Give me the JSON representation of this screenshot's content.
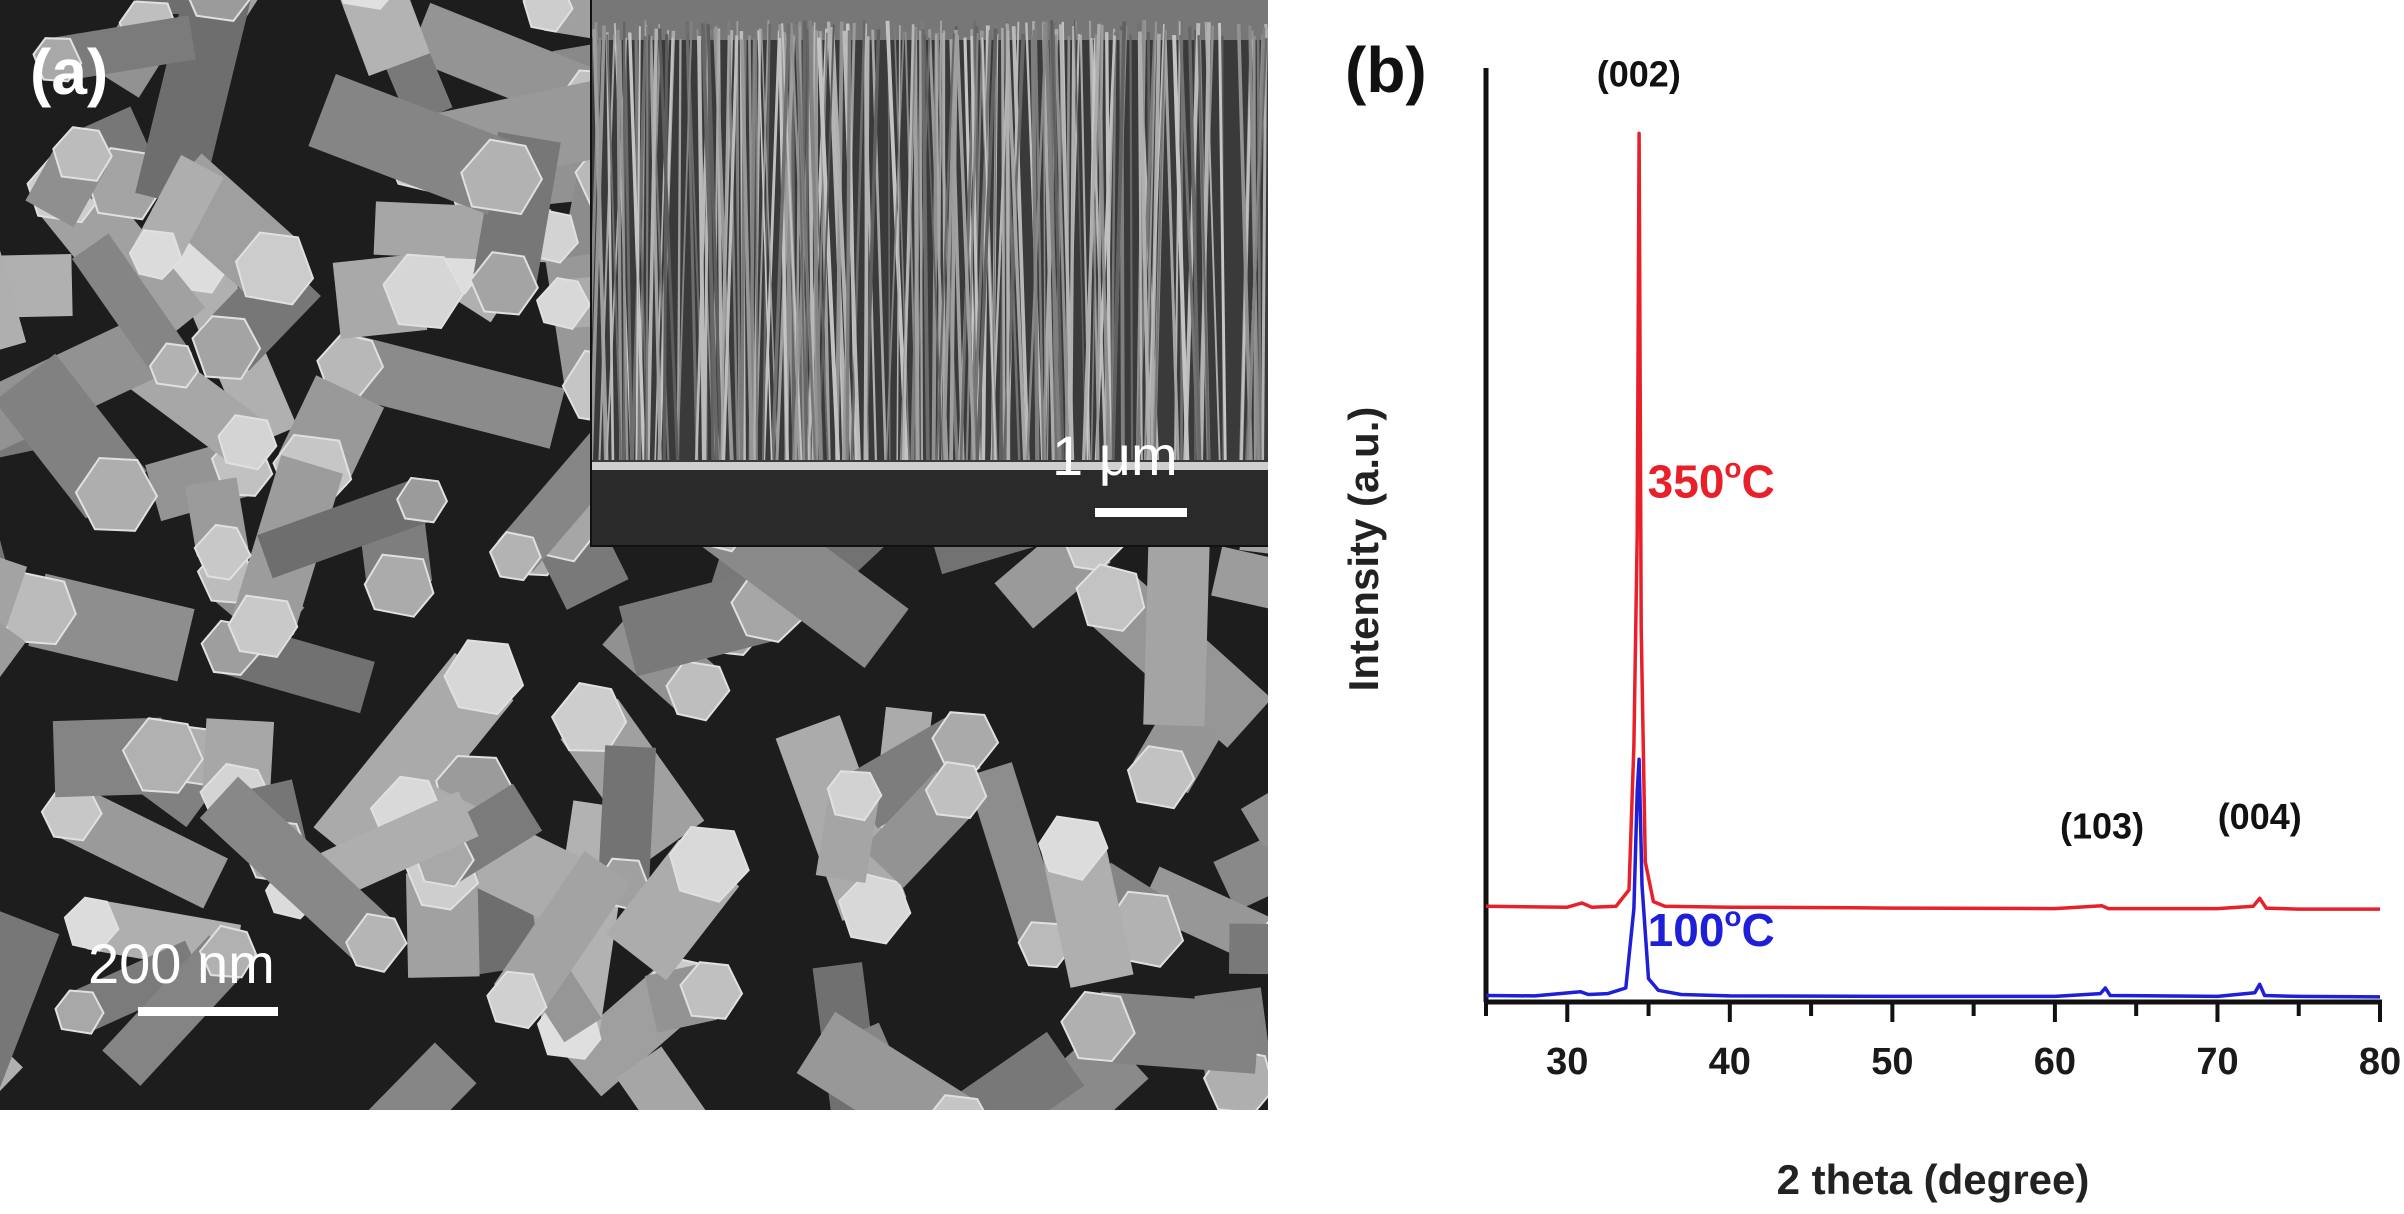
{
  "panels": {
    "a_label": "(a)",
    "b_label": "(b)"
  },
  "sem": {
    "main_scale": "200 nm",
    "inset_scale": "1 μm"
  },
  "chart_data": {
    "type": "line",
    "xlabel": "2 theta (degree)",
    "ylabel": "Intensity (a.u.)",
    "xlim": [
      25,
      80
    ],
    "xticks": [
      30,
      40,
      50,
      60,
      70,
      80
    ],
    "colors": {
      "350": "#e8202a",
      "100": "#1f1fd8"
    },
    "series": [
      {
        "label": "350",
        "unit": "°C",
        "color": "#e8202a",
        "baseline": 0.2,
        "x": [
          25,
          30,
          30.9,
          31.5,
          33.0,
          33.8,
          34.1,
          34.3,
          34.42,
          34.55,
          34.8,
          35.3,
          36,
          40,
          47.5,
          50,
          60,
          62.9,
          63.3,
          70,
          72.2,
          72.6,
          73.0,
          75,
          80
        ],
        "y": [
          0.205,
          0.203,
          0.212,
          0.203,
          0.205,
          0.24,
          0.55,
          1.0,
          1.86,
          0.8,
          0.3,
          0.215,
          0.205,
          0.203,
          0.202,
          0.201,
          0.2,
          0.206,
          0.2,
          0.2,
          0.205,
          0.222,
          0.201,
          0.199,
          0.199
        ]
      },
      {
        "label": "100",
        "unit": "°C",
        "color": "#1f1fd8",
        "baseline": 0.012,
        "x": [
          25,
          28,
          30.8,
          31.3,
          32.5,
          33.6,
          34.1,
          34.3,
          34.42,
          34.6,
          35.0,
          35.6,
          37,
          40,
          50,
          60,
          62.8,
          63.1,
          63.4,
          70,
          72.3,
          72.6,
          72.9,
          75,
          80
        ],
        "y": [
          0.014,
          0.013,
          0.022,
          0.016,
          0.018,
          0.03,
          0.2,
          0.45,
          0.52,
          0.25,
          0.05,
          0.025,
          0.016,
          0.013,
          0.012,
          0.012,
          0.018,
          0.03,
          0.014,
          0.012,
          0.02,
          0.038,
          0.014,
          0.012,
          0.011
        ]
      }
    ],
    "peak_labels": [
      {
        "text": "(002)",
        "x": 34.4,
        "y": 1.96
      },
      {
        "text": "(103)",
        "x": 62.9,
        "y": 0.35
      },
      {
        "text": "(004)",
        "x": 72.6,
        "y": 0.37
      }
    ]
  }
}
